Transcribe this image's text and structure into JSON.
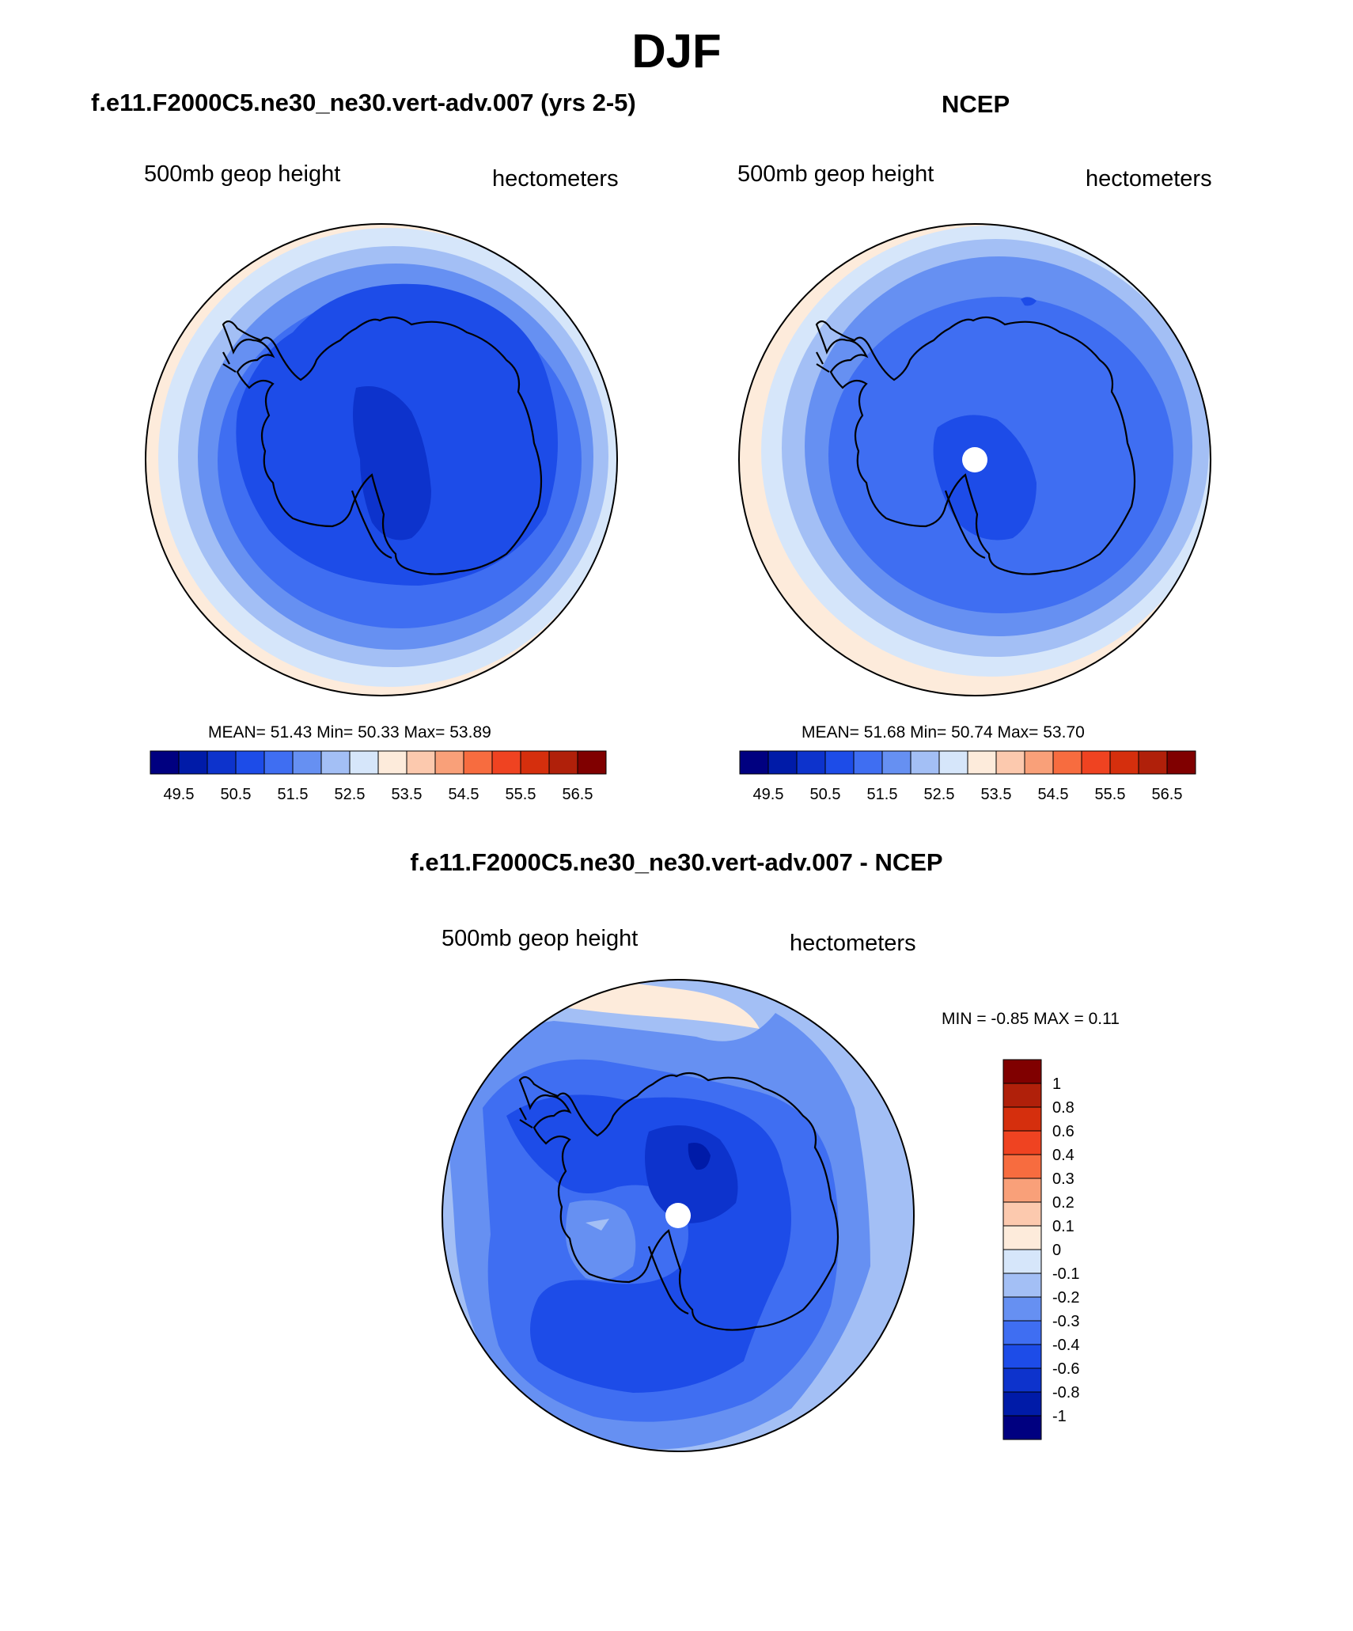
{
  "title": "DJF",
  "panels": [
    {
      "title": "f.e11.F2000C5.ne30_ne30.vert-adv.007 (yrs 2-5)",
      "left_label": "500mb geop height",
      "right_label": "hectometers",
      "stats": {
        "mean": "51.43",
        "min": "50.33",
        "max": "53.89"
      },
      "stats_text": "MEAN=  51.43  Min=  50.33  Max=  53.89"
    },
    {
      "title": "NCEP",
      "left_label": "500mb geop height",
      "right_label": "hectometers",
      "stats": {
        "mean": "51.68",
        "min": "50.74",
        "max": "53.70"
      },
      "stats_text": "MEAN=  51.68  Min=  50.74  Max=  53.70"
    },
    {
      "title": "f.e11.F2000C5.ne30_ne30.vert-adv.007 - NCEP",
      "left_label": "500mb geop height",
      "right_label": "hectometers",
      "stats": {
        "min": "-0.85",
        "max": "0.11"
      },
      "stats_text": "MIN =  -0.85 MAX =   0.11"
    }
  ],
  "colorbar_height": {
    "colors": [
      "#000080",
      "#001ba8",
      "#0d33cc",
      "#1d4ce8",
      "#3f6ef2",
      "#6690f2",
      "#a3bff5",
      "#d6e6fa",
      "#fdebdb",
      "#fcc9ae",
      "#f9a079",
      "#f76c3f",
      "#ef4321",
      "#d52f0d",
      "#b0200a",
      "#800000"
    ],
    "tick_labels": [
      "49.5",
      "50.5",
      "51.5",
      "52.5",
      "53.5",
      "54.5",
      "55.5",
      "56.5"
    ]
  },
  "colorbar_diff": {
    "colors": [
      "#000080",
      "#001ba8",
      "#0d33cc",
      "#1d4ce8",
      "#3f6ef2",
      "#6690f2",
      "#a3bff5",
      "#d6e6fa",
      "#fdebdb",
      "#fcc9ae",
      "#f9a079",
      "#f76c3f",
      "#ef4321",
      "#d52f0d",
      "#b0200a",
      "#800000"
    ],
    "tick_labels": [
      "-1",
      "-0.8",
      "-0.6",
      "-0.4",
      "-0.3",
      "-0.2",
      "-0.1",
      "0",
      "0.1",
      "0.2",
      "0.3",
      "0.4",
      "0.6",
      "0.8",
      "1"
    ]
  }
}
